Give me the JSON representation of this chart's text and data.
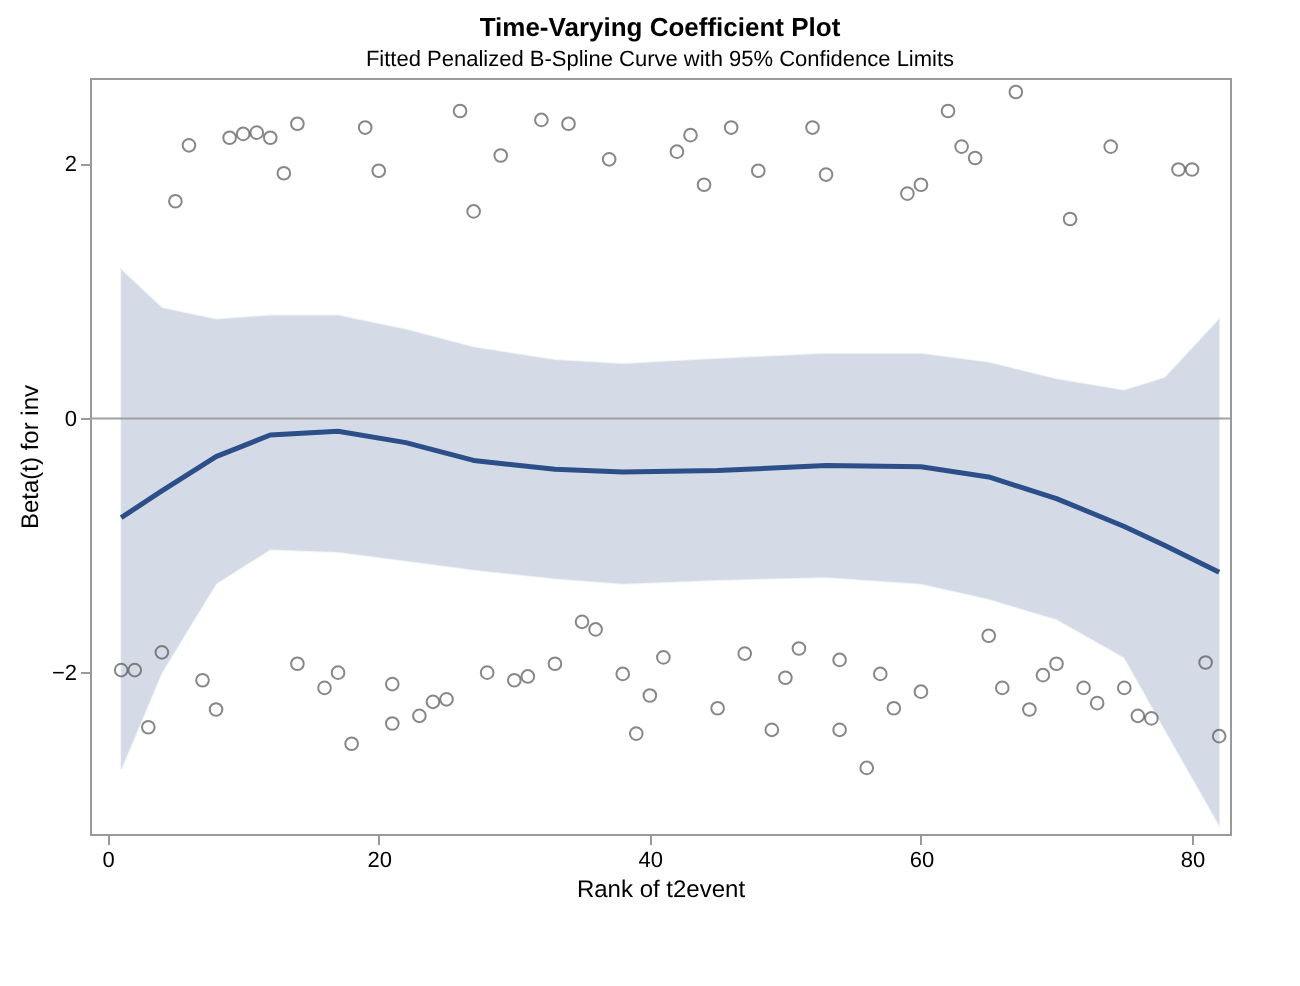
{
  "chart_data": {
    "type": "scatter",
    "title": "Time-Varying Coefficient Plot",
    "subtitle": "Fitted Penalized B-Spline Curve with 95% Confidence Limits",
    "xlabel": "Rank of t2event",
    "ylabel": "Beta(t) for inv",
    "xlim": [
      -1.3,
      82.8
    ],
    "ylim": [
      -3.27,
      2.68
    ],
    "xticks": [
      0,
      20,
      40,
      60,
      80
    ],
    "yticks": [
      -2,
      0,
      2
    ],
    "grid": false,
    "ref_lines": [
      {
        "axis": "y",
        "value": 0,
        "color": "#a0a0a0"
      }
    ],
    "series": [
      {
        "type": "line",
        "color": "#2c4f8a",
        "x": [
          1,
          4,
          8,
          12,
          17,
          22,
          27,
          33,
          38,
          45,
          53,
          60,
          65,
          70,
          75,
          78,
          82
        ],
        "values": [
          -0.78,
          -0.57,
          -0.3,
          -0.13,
          -0.1,
          -0.19,
          -0.33,
          -0.4,
          -0.42,
          -0.41,
          -0.37,
          -0.38,
          -0.46,
          -0.63,
          -0.85,
          -1.0,
          -1.21
        ],
        "lower": [
          -2.76,
          -2.0,
          -1.3,
          -1.03,
          -1.05,
          -1.12,
          -1.19,
          -1.26,
          -1.3,
          -1.27,
          -1.25,
          -1.3,
          -1.42,
          -1.58,
          -1.88,
          -2.45,
          -3.2
        ],
        "upper": [
          1.17,
          0.87,
          0.78,
          0.81,
          0.81,
          0.7,
          0.56,
          0.46,
          0.43,
          0.47,
          0.51,
          0.51,
          0.44,
          0.31,
          0.22,
          0.32,
          0.78
        ]
      },
      {
        "marker": "circle",
        "color": "#555555",
        "x": [
          5,
          6,
          9,
          10,
          11,
          12,
          13,
          14,
          19,
          20,
          26,
          27,
          29,
          32,
          34,
          37,
          42,
          43,
          44,
          46,
          48,
          52,
          53,
          59,
          60,
          62,
          63,
          64,
          67,
          71,
          74,
          79,
          80,
          1,
          2,
          3,
          4,
          7,
          8,
          14,
          16,
          17,
          18,
          21,
          21,
          23,
          24,
          25,
          28,
          30,
          31,
          33,
          35,
          36,
          38,
          39,
          40,
          41,
          45,
          47,
          49,
          50,
          51,
          54,
          54,
          56,
          57,
          58,
          60,
          65,
          66,
          68,
          69,
          70,
          72,
          73,
          75,
          76,
          77,
          81,
          82
        ],
        "values": [
          1.71,
          2.15,
          2.21,
          2.24,
          2.25,
          2.21,
          1.93,
          2.32,
          2.29,
          1.95,
          2.42,
          1.63,
          2.07,
          2.35,
          2.32,
          2.04,
          2.1,
          2.23,
          1.84,
          2.29,
          1.95,
          2.29,
          1.92,
          1.77,
          1.84,
          2.42,
          2.14,
          2.05,
          2.57,
          1.57,
          2.14,
          1.96,
          1.96,
          -1.98,
          -1.98,
          -2.43,
          -1.84,
          -2.06,
          -2.29,
          -1.93,
          -2.12,
          -2.0,
          -2.56,
          -2.09,
          -2.4,
          -2.34,
          -2.23,
          -2.21,
          -2.0,
          -2.06,
          -2.03,
          -1.93,
          -1.6,
          -1.66,
          -2.01,
          -2.48,
          -2.18,
          -1.88,
          -2.28,
          -1.85,
          -2.45,
          -2.04,
          -1.81,
          -1.9,
          -2.45,
          -2.75,
          -2.01,
          -2.28,
          -2.15,
          -1.71,
          -2.12,
          -2.29,
          -2.02,
          -1.93,
          -2.12,
          -2.24,
          -2.12,
          -2.34,
          -2.36,
          -1.92,
          -2.5
        ]
      }
    ]
  }
}
